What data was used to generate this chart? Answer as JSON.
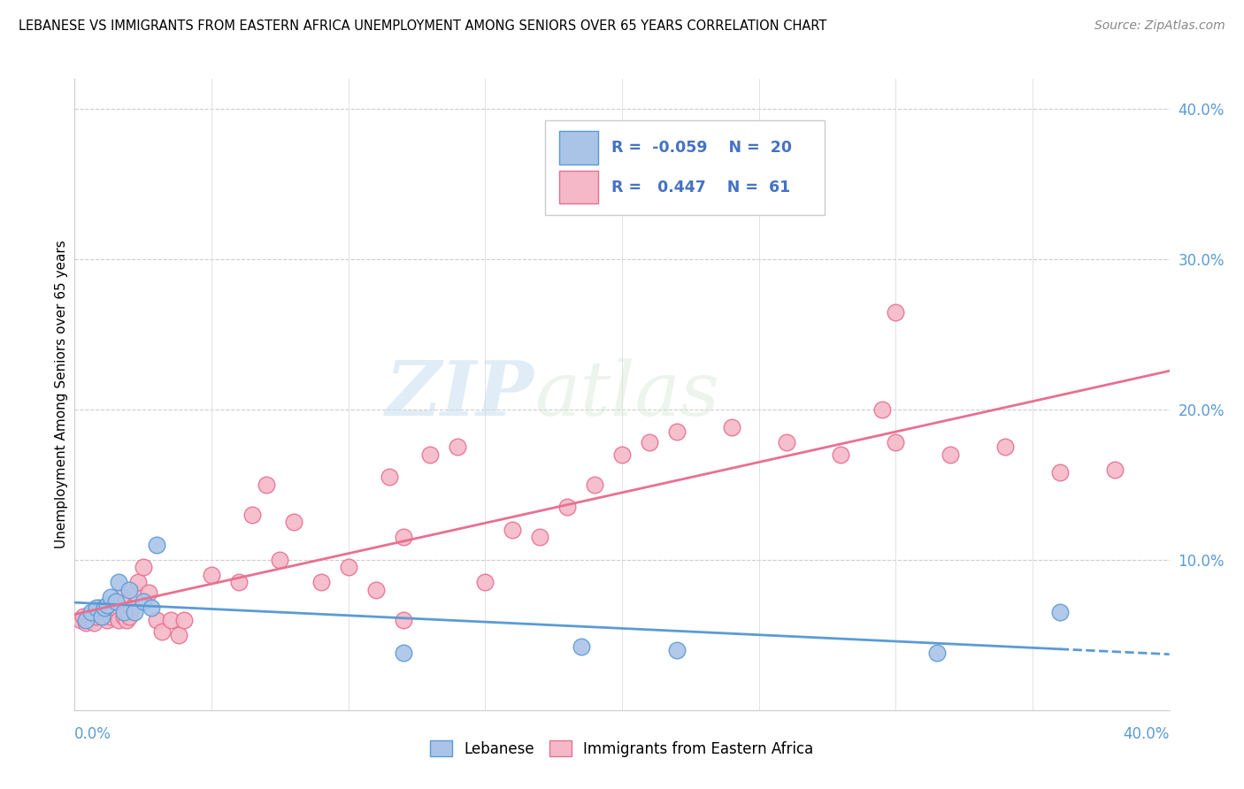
{
  "title": "LEBANESE VS IMMIGRANTS FROM EASTERN AFRICA UNEMPLOYMENT AMONG SENIORS OVER 65 YEARS CORRELATION CHART",
  "source": "Source: ZipAtlas.com",
  "ylabel": "Unemployment Among Seniors over 65 years",
  "background_color": "#ffffff",
  "watermark_zip": "ZIP",
  "watermark_atlas": "atlas",
  "lebanese_color": "#aac4e8",
  "eastern_africa_color": "#f4b8c8",
  "lebanese_edge_color": "#5b9bd5",
  "eastern_africa_edge_color": "#e87090",
  "lebanese_line_color": "#5b9bd5",
  "eastern_africa_line_color": "#e87090",
  "legend_color": "#4472c4",
  "lebanese_R": -0.059,
  "lebanese_N": 20,
  "eastern_africa_R": 0.447,
  "eastern_africa_N": 61,
  "xlim": [
    0.0,
    0.4
  ],
  "ylim": [
    0.0,
    0.42
  ],
  "lebanese_x": [
    0.004,
    0.006,
    0.008,
    0.01,
    0.011,
    0.012,
    0.013,
    0.015,
    0.016,
    0.018,
    0.02,
    0.022,
    0.025,
    0.028,
    0.03,
    0.12,
    0.185,
    0.22,
    0.315,
    0.36
  ],
  "lebanese_y": [
    0.06,
    0.065,
    0.068,
    0.062,
    0.068,
    0.07,
    0.075,
    0.072,
    0.085,
    0.065,
    0.08,
    0.065,
    0.072,
    0.068,
    0.11,
    0.038,
    0.042,
    0.04,
    0.038,
    0.065
  ],
  "eastern_africa_x": [
    0.002,
    0.003,
    0.004,
    0.005,
    0.006,
    0.007,
    0.008,
    0.009,
    0.01,
    0.011,
    0.012,
    0.013,
    0.014,
    0.015,
    0.016,
    0.017,
    0.018,
    0.019,
    0.02,
    0.021,
    0.022,
    0.023,
    0.025,
    0.027,
    0.03,
    0.032,
    0.035,
    0.038,
    0.04,
    0.05,
    0.06,
    0.065,
    0.07,
    0.075,
    0.08,
    0.09,
    0.1,
    0.11,
    0.115,
    0.12,
    0.13,
    0.14,
    0.15,
    0.16,
    0.17,
    0.18,
    0.19,
    0.2,
    0.21,
    0.22,
    0.24,
    0.26,
    0.28,
    0.3,
    0.32,
    0.34,
    0.36,
    0.38,
    0.295,
    0.3,
    0.12
  ],
  "eastern_africa_y": [
    0.06,
    0.062,
    0.058,
    0.062,
    0.06,
    0.058,
    0.062,
    0.068,
    0.065,
    0.062,
    0.06,
    0.062,
    0.065,
    0.068,
    0.06,
    0.075,
    0.062,
    0.06,
    0.062,
    0.068,
    0.078,
    0.085,
    0.095,
    0.078,
    0.06,
    0.052,
    0.06,
    0.05,
    0.06,
    0.09,
    0.085,
    0.13,
    0.15,
    0.1,
    0.125,
    0.085,
    0.095,
    0.08,
    0.155,
    0.115,
    0.17,
    0.175,
    0.085,
    0.12,
    0.115,
    0.135,
    0.15,
    0.17,
    0.178,
    0.185,
    0.188,
    0.178,
    0.17,
    0.265,
    0.17,
    0.175,
    0.158,
    0.16,
    0.2,
    0.178,
    0.06
  ],
  "leb_trend_solid_end": 0.36,
  "leb_trend_y_start": 0.085,
  "leb_trend_y_end": 0.065,
  "ea_trend_y_start": 0.065,
  "ea_trend_y_end": 0.198
}
